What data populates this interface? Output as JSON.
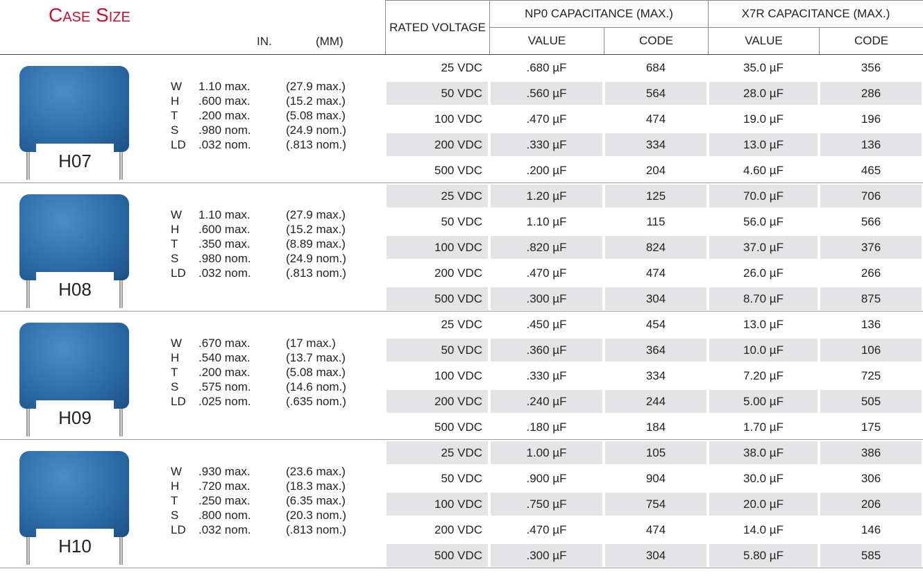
{
  "header": {
    "title": "Case Size",
    "in": "IN.",
    "mm": "(MM)",
    "rated_voltage": "RATED VOLTAGE",
    "np0": "NP0 CAPACITANCE (MAX.)",
    "x7r": "X7R CAPACITANCE (MAX.)",
    "np0_value": "VALUE",
    "np0_code": "CODE",
    "x7r_value": "VALUE",
    "x7r_code": "CODE"
  },
  "groups": [
    {
      "name": "H07",
      "dims": [
        [
          "W",
          "1.10 max.",
          "(27.9 max.)"
        ],
        [
          "H",
          ".600 max.",
          "(15.2 max.)"
        ],
        [
          "T",
          ".200 max.",
          "(5.08 max.)"
        ],
        [
          "S",
          ".980 nom.",
          "(24.9 nom.)"
        ],
        [
          "LD",
          ".032 nom.",
          "(.813 nom.)"
        ]
      ],
      "rows": [
        [
          "25 VDC",
          ".680 µF",
          "684",
          "35.0 µF",
          "356"
        ],
        [
          "50 VDC",
          ".560 µF",
          "564",
          "28.0 µF",
          "286"
        ],
        [
          "100 VDC",
          ".470 µF",
          "474",
          "19.0 µF",
          "196"
        ],
        [
          "200 VDC",
          ".330 µF",
          "334",
          "13.0 µF",
          "136"
        ],
        [
          "500 VDC",
          ".200 µF",
          "204",
          "4.60 µF",
          "465"
        ]
      ]
    },
    {
      "name": "H08",
      "dims": [
        [
          "W",
          "1.10 max.",
          "(27.9 max.)"
        ],
        [
          "H",
          ".600 max.",
          "(15.2 max.)"
        ],
        [
          "T",
          ".350 max.",
          "(8.89 max.)"
        ],
        [
          "S",
          ".980 nom.",
          "(24.9 nom.)"
        ],
        [
          "LD",
          ".032 nom.",
          "(.813 nom.)"
        ]
      ],
      "rows": [
        [
          "25 VDC",
          "1.20 µF",
          "125",
          "70.0 µF",
          "706"
        ],
        [
          "50 VDC",
          "1.10 µF",
          "115",
          "56.0 µF",
          "566"
        ],
        [
          "100 VDC",
          ".820 µF",
          "824",
          "37.0 µF",
          "376"
        ],
        [
          "200 VDC",
          ".470 µF",
          "474",
          "26.0 µF",
          "266"
        ],
        [
          "500 VDC",
          ".300 µF",
          "304",
          "8.70 µF",
          "875"
        ]
      ]
    },
    {
      "name": "H09",
      "dims": [
        [
          "W",
          ".670 max.",
          "(17 max.)"
        ],
        [
          "H",
          ".540 max.",
          "(13.7 max.)"
        ],
        [
          "T",
          ".200 max.",
          "(5.08 max.)"
        ],
        [
          "S",
          ".575 nom.",
          "(14.6 nom.)"
        ],
        [
          "LD",
          ".025 nom.",
          "(.635 nom.)"
        ]
      ],
      "rows": [
        [
          "25 VDC",
          ".450 µF",
          "454",
          "13.0 µF",
          "136"
        ],
        [
          "50 VDC",
          ".360 µF",
          "364",
          "10.0 µF",
          "106"
        ],
        [
          "100 VDC",
          ".330 µF",
          "334",
          "7.20 µF",
          "725"
        ],
        [
          "200 VDC",
          ".240 µF",
          "244",
          "5.00 µF",
          "505"
        ],
        [
          "500 VDC",
          ".180 µF",
          "184",
          "1.70 µF",
          "175"
        ]
      ]
    },
    {
      "name": "H10",
      "dims": [
        [
          "W",
          ".930 max.",
          "(23.6 max.)"
        ],
        [
          "H",
          ".720 max.",
          "(18.3 max.)"
        ],
        [
          "T",
          ".250 max.",
          "(6.35 max.)"
        ],
        [
          "S",
          ".800 nom.",
          "(20.3 nom.)"
        ],
        [
          "LD",
          ".032 nom.",
          "(.813 nom.)"
        ]
      ],
      "rows": [
        [
          "25 VDC",
          "1.00 µF",
          "105",
          "38.0 µF",
          "386"
        ],
        [
          "50 VDC",
          ".900 µF",
          "904",
          "30.0 µF",
          "306"
        ],
        [
          "100 VDC",
          ".750 µF",
          "754",
          "20.0 µF",
          "206"
        ],
        [
          "200 VDC",
          ".470 µF",
          "474",
          "14.0 µF",
          "146"
        ],
        [
          "500 VDC",
          ".300 µF",
          "304",
          "5.80 µF",
          "585"
        ]
      ]
    }
  ]
}
